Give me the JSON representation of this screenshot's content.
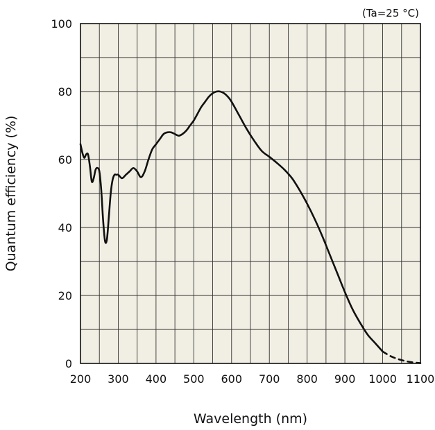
{
  "chart_data": {
    "type": "line",
    "title": "",
    "condition_note": "(Ta=25 °C)",
    "xlabel": "Wavelength (nm)",
    "ylabel": "Quantum efficiency (%)",
    "xlim": [
      200,
      1100
    ],
    "ylim": [
      0,
      100
    ],
    "x_ticks": [
      200,
      300,
      400,
      500,
      600,
      700,
      800,
      900,
      1000,
      1100
    ],
    "y_ticks": [
      0,
      20,
      40,
      60,
      80,
      100
    ],
    "grid": true,
    "legend": "none",
    "colors": {
      "plot_background": "#f1eee3",
      "grid": "#333333",
      "line": "#111111"
    },
    "series": [
      {
        "style": "solid",
        "x": [
          200,
          205,
          210,
          215,
          220,
          225,
          230,
          235,
          240,
          245,
          250,
          255,
          260,
          265,
          270,
          275,
          280,
          285,
          290,
          295,
          300,
          310,
          320,
          330,
          340,
          350,
          360,
          370,
          380,
          390,
          400,
          410,
          420,
          430,
          440,
          450,
          460,
          470,
          480,
          490,
          500,
          510,
          520,
          530,
          540,
          550,
          560,
          570,
          580,
          590,
          600,
          620,
          640,
          660,
          680,
          700,
          720,
          740,
          760,
          780,
          800,
          820,
          840,
          860,
          880,
          900,
          920,
          940,
          960,
          980,
          1000
        ],
        "y": [
          64.5,
          62,
          60.5,
          61.5,
          61.5,
          58,
          53.5,
          54.5,
          57,
          57.5,
          56.5,
          51,
          42,
          36,
          36.5,
          43,
          50,
          54,
          55.5,
          55.5,
          55.5,
          54.5,
          55.5,
          56.5,
          57.5,
          56.5,
          54.8,
          56.5,
          60,
          63,
          64.5,
          66,
          67.5,
          68,
          68,
          67.5,
          67,
          67.5,
          68.5,
          70,
          71.5,
          73.5,
          75.5,
          77,
          78.5,
          79.5,
          80,
          80,
          79.5,
          78.5,
          77,
          73,
          69,
          65.5,
          62.5,
          60.8,
          59,
          57,
          54.5,
          51,
          47,
          42.5,
          37.5,
          32,
          26.5,
          21,
          16,
          12,
          8.5,
          6,
          3.5
        ]
      },
      {
        "style": "dashed",
        "x": [
          1000,
          1020,
          1040,
          1060,
          1080,
          1100
        ],
        "y": [
          3.5,
          2.2,
          1.3,
          0.7,
          0.3,
          0.1
        ]
      }
    ]
  }
}
